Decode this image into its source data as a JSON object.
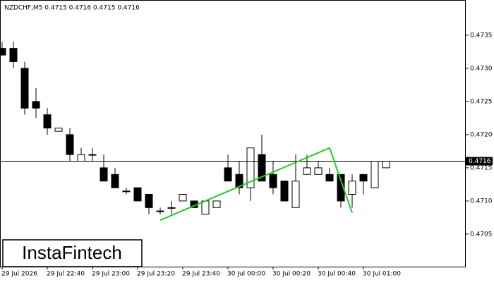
{
  "chart_data": {
    "type": "candlestick",
    "title": "NZDCHF,M5  0.4715 0.4716 0.4715 0.4716",
    "watermark": "InstaFintech",
    "categories": [
      "29 Jul 2026",
      null,
      null,
      null,
      "29 Jul 22:40",
      null,
      null,
      null,
      "29 Jul 23:00",
      null,
      null,
      null,
      "29 Jul 23:20",
      null,
      null,
      null,
      "29 Jul 23:40",
      null,
      null,
      null,
      "30 Jul 00:00",
      null,
      null,
      null,
      "30 Jul 00:20",
      null,
      null,
      null,
      "30 Jul 00:40",
      null,
      null,
      null,
      "30 Jul 01:00",
      null,
      null
    ],
    "open": [
      0.4733,
      0.4733,
      0.473,
      0.4725,
      0.4723,
      0.47205,
      0.472,
      0.4716,
      0.4717,
      0.4715,
      0.4714,
      0.47115,
      0.4712,
      0.4711,
      0.47085,
      0.4709,
      0.471,
      0.471,
      0.4708,
      0.4709,
      0.4715,
      0.4714,
      0.4712,
      0.4717,
      0.4714,
      0.4713,
      0.4709,
      0.4714,
      0.4714,
      0.4714,
      0.4714,
      0.4711,
      0.4714,
      0.4712,
      0.4715
    ],
    "high": [
      0.4734,
      0.4734,
      0.4731,
      0.4727,
      0.4724,
      0.4721,
      0.4721,
      0.4718,
      0.4718,
      0.4717,
      0.4715,
      0.4712,
      0.4712,
      0.4711,
      0.4709,
      0.471,
      0.4711,
      0.471,
      0.471,
      0.471,
      0.4717,
      0.4716,
      0.4718,
      0.472,
      0.4716,
      0.4713,
      0.4717,
      0.4717,
      0.4716,
      0.4715,
      0.4714,
      0.4714,
      0.4714,
      0.4716,
      0.4716
    ],
    "low": [
      0.4732,
      0.473,
      0.4723,
      0.47225,
      0.472,
      0.47205,
      0.4716,
      0.4716,
      0.4716,
      0.4713,
      0.4712,
      0.4711,
      0.471,
      0.4708,
      0.4708,
      0.4708,
      0.471,
      0.4709,
      0.4708,
      0.4709,
      0.4713,
      0.4711,
      0.471,
      0.4713,
      0.4711,
      0.471,
      0.4709,
      0.4714,
      0.4714,
      0.4713,
      0.4709,
      0.4709,
      0.4711,
      0.4712,
      0.4715
    ],
    "close": [
      0.4732,
      0.4731,
      0.4724,
      0.4724,
      0.4721,
      0.4721,
      0.4717,
      0.4717,
      0.4717,
      0.4713,
      0.4712,
      0.47115,
      0.471,
      0.4709,
      0.47085,
      0.4709,
      0.4711,
      0.4709,
      0.471,
      0.471,
      0.4713,
      0.4712,
      0.4718,
      0.4713,
      0.4712,
      0.471,
      0.4713,
      0.4715,
      0.4715,
      0.4713,
      0.471,
      0.4713,
      0.4713,
      0.4716,
      0.4716
    ],
    "ylim": [
      0.47001,
      0.47403
    ],
    "yticks": [
      0.4705,
      {
        "value": 0.471,
        "label": "0.4710"
      },
      0.4715,
      {
        "value": 0.472,
        "label": "0.4720"
      },
      0.4725,
      {
        "value": 0.473,
        "label": "0.4730"
      },
      0.4735
    ],
    "last_price": 0.4716,
    "pattern": {
      "color": "#22cc22",
      "x": [
        14,
        29,
        31
      ],
      "values": [
        0.47071,
        0.4718,
        0.47082
      ]
    }
  }
}
